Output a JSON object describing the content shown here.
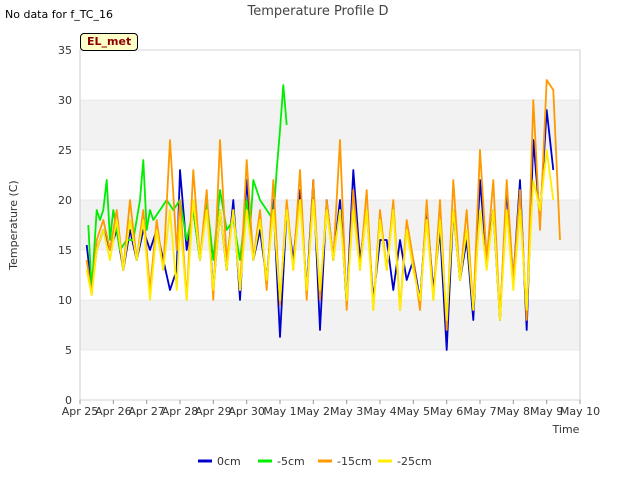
{
  "nodata_text": "No data for f_TC_16",
  "badge_text": "EL_met",
  "chart_data": {
    "type": "line",
    "title": "Temperature Profile D",
    "xlabel": "Time",
    "ylabel": "Temperature (C)",
    "ylim": [
      0,
      35
    ],
    "yticks": [
      0,
      5,
      10,
      15,
      20,
      25,
      30,
      35
    ],
    "xlim": [
      0,
      15
    ],
    "xtick_labels": [
      "Apr 25",
      "Apr 26",
      "Apr 27",
      "Apr 28",
      "Apr 29",
      "Apr 30",
      "May 1",
      "May 2",
      "May 3",
      "May 4",
      "May 5",
      "May 6",
      "May 7",
      "May 8",
      "May 9",
      "May 10"
    ],
    "grid": "horizontal bands",
    "legend_position": "bottom",
    "series": [
      {
        "name": "0cm",
        "color": "#0000cc",
        "x": [
          0.2,
          0.35,
          0.5,
          0.7,
          0.9,
          1.1,
          1.3,
          1.5,
          1.7,
          1.9,
          2.1,
          2.3,
          2.5,
          2.7,
          2.9,
          3.0,
          3.2,
          3.4,
          3.6,
          3.8,
          4.0,
          4.2,
          4.4,
          4.6,
          4.8,
          5.0,
          5.2,
          5.4,
          5.6,
          5.8,
          6.0,
          6.2,
          6.4,
          6.6,
          6.8,
          7.0,
          7.2,
          7.4,
          7.6,
          7.8,
          8.0,
          8.2,
          8.4,
          8.6,
          8.8,
          9.0,
          9.2,
          9.4,
          9.6,
          9.8,
          10.0,
          10.2,
          10.4,
          10.6,
          10.8,
          11.0,
          11.2,
          11.4,
          11.6,
          11.8,
          12.0,
          12.2,
          12.4,
          12.6,
          12.8,
          13.0,
          13.2,
          13.4,
          13.6,
          13.8,
          14.0,
          14.2
        ],
        "y": [
          15.5,
          11,
          15,
          17,
          15,
          17,
          13,
          17,
          14,
          17,
          15,
          17,
          14,
          11,
          13,
          23,
          15,
          19,
          14,
          20,
          11,
          19,
          13,
          20,
          10,
          22,
          14,
          17,
          12,
          20,
          6.3,
          19,
          14,
          21,
          11,
          22,
          7,
          20,
          14,
          20,
          9.5,
          23,
          14,
          19,
          10,
          16,
          16,
          11,
          16,
          12,
          14,
          10,
          19,
          11,
          17,
          5,
          19,
          12,
          16,
          8,
          22,
          14,
          19,
          8,
          21,
          12,
          22,
          7,
          26,
          18,
          29,
          23
        ]
      },
      {
        "name": "-5cm",
        "color": "#00ee00",
        "x": [
          0.25,
          0.35,
          0.5,
          0.6,
          0.7,
          0.8,
          0.9,
          1.0,
          1.2,
          1.4,
          1.6,
          1.8,
          1.9,
          2.0,
          2.1,
          2.2,
          2.4,
          2.6,
          2.8,
          3.0,
          3.2,
          3.4,
          3.6,
          3.8,
          4.0,
          4.2,
          4.4,
          4.6,
          4.8,
          5.0,
          5.1,
          5.2,
          5.4,
          5.6,
          5.8,
          5.9,
          6.0,
          6.1,
          6.2
        ],
        "y": [
          17.5,
          11,
          19,
          18,
          19,
          22,
          16,
          19,
          15,
          16,
          16,
          20,
          24,
          17,
          19,
          18,
          19,
          20,
          19,
          20,
          16,
          19,
          14,
          20,
          14,
          21,
          17,
          18,
          14,
          20,
          17,
          22,
          20,
          19,
          18,
          23,
          27,
          31.5,
          27.5
        ]
      },
      {
        "name": "-15cm",
        "color": "#ff9900",
        "x": [
          0.2,
          0.35,
          0.5,
          0.7,
          0.9,
          1.1,
          1.3,
          1.5,
          1.7,
          1.9,
          2.1,
          2.3,
          2.5,
          2.7,
          2.9,
          3.0,
          3.2,
          3.4,
          3.6,
          3.8,
          4.0,
          4.2,
          4.4,
          4.6,
          4.8,
          5.0,
          5.2,
          5.4,
          5.6,
          5.8,
          6.0,
          6.2,
          6.4,
          6.6,
          6.8,
          7.0,
          7.2,
          7.4,
          7.6,
          7.8,
          8.0,
          8.2,
          8.4,
          8.6,
          8.8,
          9.0,
          9.2,
          9.4,
          9.6,
          9.8,
          10.0,
          10.2,
          10.4,
          10.6,
          10.8,
          11.0,
          11.2,
          11.4,
          11.6,
          11.8,
          12.0,
          12.2,
          12.4,
          12.6,
          12.8,
          13.0,
          13.2,
          13.4,
          13.6,
          13.8,
          14.0,
          14.2,
          14.4
        ],
        "y": [
          14,
          10.5,
          16,
          18,
          15,
          19,
          13,
          20,
          14,
          19,
          11,
          18,
          13,
          26,
          15,
          20,
          10,
          23,
          14,
          21,
          10,
          26,
          14,
          19,
          11,
          24,
          14,
          19,
          11,
          22,
          9.5,
          20,
          13,
          23,
          10,
          22,
          10,
          20,
          14,
          26,
          9,
          21,
          13,
          21,
          9,
          19,
          13,
          20,
          9,
          18,
          14,
          9,
          20,
          10,
          20,
          7,
          22,
          12,
          19,
          9,
          25,
          14,
          22,
          8,
          22,
          12,
          21,
          8,
          30,
          17,
          32,
          31,
          16
        ]
      },
      {
        "name": "-25cm",
        "color": "#ffee00",
        "x": [
          0.2,
          0.35,
          0.5,
          0.7,
          0.9,
          1.1,
          1.3,
          1.5,
          1.7,
          1.9,
          2.1,
          2.3,
          2.5,
          2.7,
          2.9,
          3.0,
          3.2,
          3.4,
          3.6,
          3.8,
          4.0,
          4.2,
          4.4,
          4.6,
          4.8,
          5.0,
          5.2,
          5.4,
          5.6,
          5.8,
          6.0,
          6.2,
          6.4,
          6.6,
          6.8,
          7.0,
          7.2,
          7.4,
          7.6,
          7.8,
          8.0,
          8.2,
          8.4,
          8.6,
          8.8,
          9.0,
          9.2,
          9.4,
          9.6,
          9.8,
          10.0,
          10.2,
          10.4,
          10.6,
          10.8,
          11.0,
          11.2,
          11.4,
          11.6,
          11.8,
          12.0,
          12.2,
          12.4,
          12.6,
          12.8,
          13.0,
          13.2,
          13.4,
          13.6,
          13.8,
          14.0,
          14.2
        ],
        "y": [
          13,
          10.5,
          15,
          17,
          14,
          18,
          13,
          18,
          14,
          18,
          10,
          17,
          13,
          19,
          11,
          18,
          10,
          20,
          14,
          19,
          11,
          19,
          13,
          19,
          11,
          19,
          14,
          18,
          12,
          19,
          10,
          19,
          13,
          20,
          11,
          20,
          11,
          19,
          14,
          19,
          10,
          19,
          13,
          19,
          9,
          18,
          13,
          19,
          9,
          17,
          13,
          10,
          18,
          10,
          18,
          8,
          19,
          12,
          17,
          9,
          19,
          13,
          19,
          8,
          19,
          11,
          19,
          9,
          22,
          19,
          25,
          20
        ]
      }
    ]
  }
}
